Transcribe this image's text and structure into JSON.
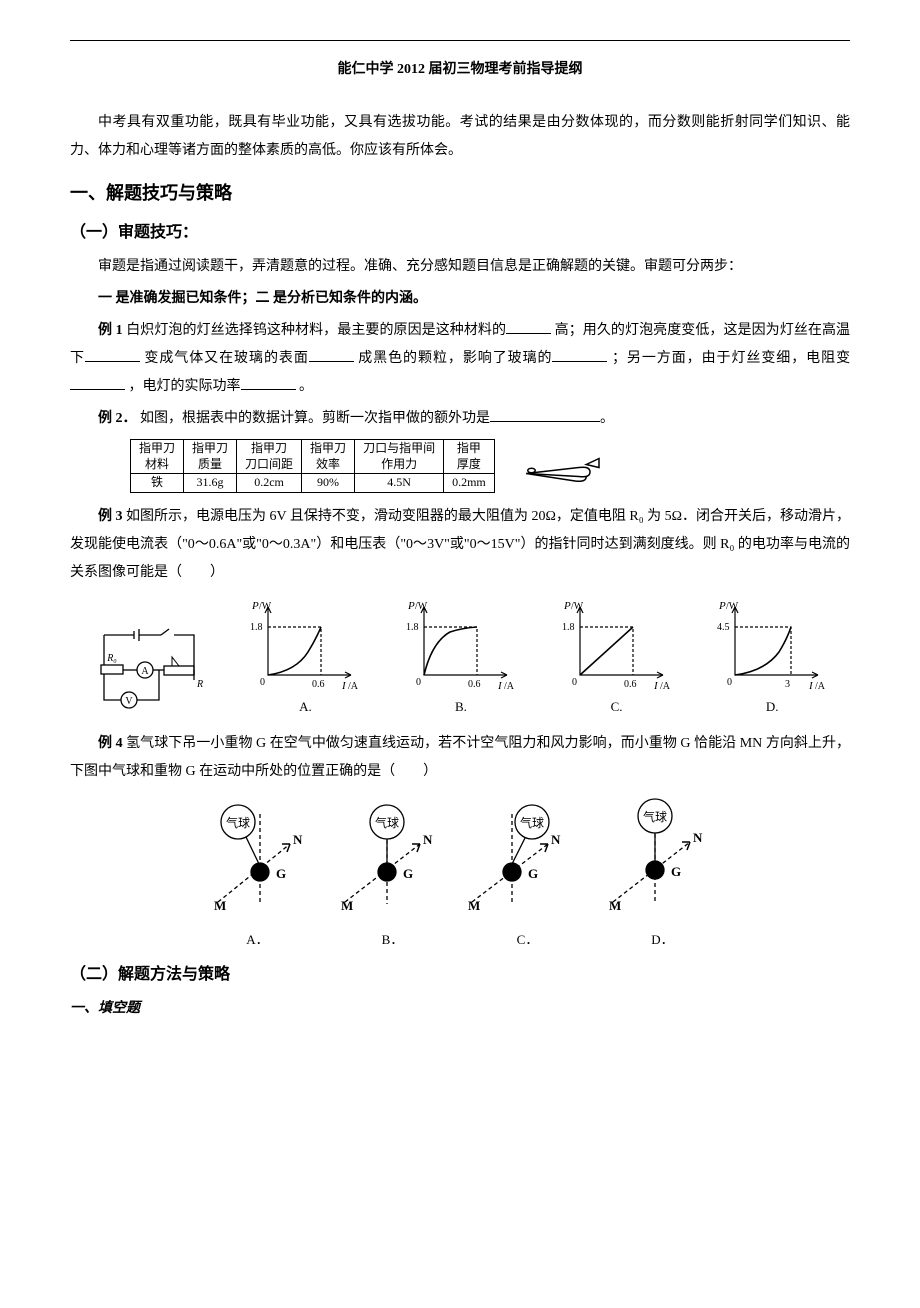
{
  "page": {
    "bg_color": "#ffffff",
    "text_color": "#000000",
    "font_family": "SimSun",
    "body_fontsize_pt": 10.5,
    "title_fontsize_pt": 10.5,
    "h1_fontsize_pt": 14,
    "h2_fontsize_pt": 12
  },
  "title": "能仁中学 2012 届初三物理考前指导提纲",
  "intro": "中考具有双重功能，既具有毕业功能，又具有选拔功能。考试的结果是由分数体现的，而分数则能折射同学们知识、能力、体力和心理等诸方面的整体素质的高低。你应该有所体会。",
  "sec1": "一、解题技巧与策略",
  "sub1": "（一）审题技巧：",
  "sub1_body": "审题是指通过阅读题干，弄清题意的过程。准确、充分感知题目信息是正确解题的关键。审题可分两步：",
  "sub1_step": "一  是准确发掘已知条件；二  是分析已知条件的内涵。",
  "ex1_label": "例 1",
  "ex1_a": "白炽灯泡的灯丝选择钨这种材料，最主要的原因是这种材料的",
  "ex1_b": "高；用久的灯泡亮度变低，这是因为灯丝在高温下",
  "ex1_c": "变成气体又在玻璃的表面",
  "ex1_d": "成黑色的颗粒，影响了玻璃的",
  "ex1_e": "；另一方面，由于灯丝变细，电阻变",
  "ex1_f": "，电灯的实际功率",
  "ex1_g": "。",
  "ex2_label": "例 2．",
  "ex2_text": "如图，根据表中的数据计算。剪断一次指甲做的额外功是",
  "ex2_tail": "。",
  "table": {
    "columns": [
      "指甲刀\n材料",
      "指甲刀\n质量",
      "指甲刀\n刀口间距",
      "指甲刀\n效率",
      "刀口与指甲间\n作用力",
      "指甲\n厚度"
    ],
    "row": [
      "铁",
      "31.6g",
      "0.2cm",
      "90%",
      "4.5N",
      "0.2mm"
    ],
    "border_color": "#000000",
    "fontsize_pt": 9
  },
  "ex3_label": "例 3",
  "ex3_text": "如图所示，电源电压为 6V 且保持不变，滑动变阻器的最大阻值为 20Ω，定值电阻 R₀ 为 5Ω．闭合开关后，移动滑片，发现能使电流表（\"0～0.6A\"或\"0～0.3A\"）和电压表（\"0～3V\"或\"0～15V\"）的指针同时达到满刻度线。则 R₀ 的电功率与电流的关系图像可能是（　　）",
  "ex3_graphs": {
    "circuit": {
      "labels": [
        "R₀",
        "A",
        "V",
        "R"
      ],
      "line_color": "#000000"
    },
    "common": {
      "ylabel": "P/W",
      "xlabel": "I/A",
      "line_color": "#000000",
      "axis_color": "#000000",
      "dash_pattern": "3,2",
      "fontsize_pt": 9,
      "curve_width": 1.2
    },
    "options": [
      {
        "label": "A.",
        "ymax_label": "1.8",
        "xmax_label": "0.6",
        "curve": "concave_up_steepening",
        "ylim": [
          0,
          2.2
        ],
        "xlim": [
          0,
          0.75
        ]
      },
      {
        "label": "B.",
        "ymax_label": "1.8",
        "xmax_label": "0.6",
        "curve": "concave_down_flattening",
        "ylim": [
          0,
          2.2
        ],
        "xlim": [
          0,
          0.75
        ]
      },
      {
        "label": "C.",
        "ymax_label": "1.8",
        "xmax_label": "0.6",
        "curve": "straight_line",
        "ylim": [
          0,
          2.2
        ],
        "xlim": [
          0,
          0.75
        ]
      },
      {
        "label": "D.",
        "ymax_label": "4.5",
        "xmax_label": "3",
        "curve": "concave_up_steepening",
        "ylim": [
          0,
          5.5
        ],
        "xlim": [
          0,
          3.8
        ]
      }
    ]
  },
  "ex4_label": "例 4",
  "ex4_text": "氢气球下吊一小重物 G 在空气中做匀速直线运动，若不计空气阻力和风力影响，而小重物 G 恰能沿 MN 方向斜上升，下图中气球和重物 G 在运动中所处的位置正确的是（　　）",
  "ex4_diagrams": {
    "common": {
      "balloon_label": "气球",
      "weight_label": "G",
      "M_label": "M",
      "N_label": "N",
      "dash_color": "#000000",
      "balloon_stroke": "#000000",
      "weight_fill": "#000000",
      "arrow_color": "#000000",
      "fontsize_pt": 10
    },
    "options": [
      {
        "label": "A．",
        "balloon_offset": "left_of_vertical",
        "string_tilt_deg": 20
      },
      {
        "label": "B．",
        "balloon_offset": "on_vertical",
        "string_tilt_deg": 0
      },
      {
        "label": "C．",
        "balloon_offset": "right_of_vertical",
        "string_tilt_deg": -20
      },
      {
        "label": "D．",
        "balloon_offset": "on_vertical_higher",
        "string_tilt_deg": 0
      }
    ]
  },
  "sub2": "（二）解题方法与策略",
  "sub2_item1": "一、填空题"
}
